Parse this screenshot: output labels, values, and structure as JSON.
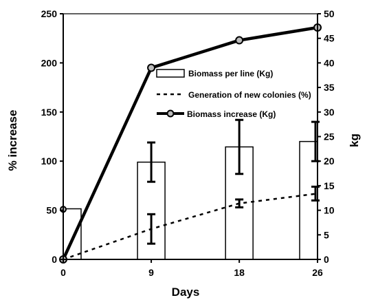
{
  "chart_data": {
    "type": "bar+line",
    "title": "",
    "xlabel": "Days",
    "ylabel_left": "% increase",
    "ylabel_right": "kg",
    "x": [
      0,
      9,
      18,
      26
    ],
    "x_ticks": [
      "0",
      "9",
      "18",
      "26"
    ],
    "ylim_left": [
      0,
      250
    ],
    "ylim_right": [
      0,
      50
    ],
    "y_ticks_left": [
      "0",
      "50",
      "100",
      "150",
      "200",
      "250"
    ],
    "y_ticks_right": [
      "0",
      "5",
      "10",
      "15",
      "20",
      "25",
      "30",
      "35",
      "40",
      "45",
      "50"
    ],
    "grid": false,
    "legend_position": "center",
    "series": [
      {
        "name": "Biomass per line (Kg)",
        "type": "bar",
        "axis": "right",
        "values": [
          10.3,
          19.8,
          22.9,
          24
        ],
        "error": [
          null,
          4,
          5.5,
          4
        ],
        "color": "#ffffff"
      },
      {
        "name": "Generation of new colonies (%)",
        "type": "line",
        "style": "dashed",
        "axis": "left",
        "values": [
          0,
          31,
          57,
          67
        ],
        "error": [
          null,
          15,
          4,
          7
        ],
        "color": "#000000"
      },
      {
        "name": "Biomass increase (Kg)",
        "type": "line",
        "style": "solid-markers",
        "axis": "left",
        "values": [
          0,
          195,
          223,
          236
        ],
        "color": "#000000"
      }
    ]
  }
}
